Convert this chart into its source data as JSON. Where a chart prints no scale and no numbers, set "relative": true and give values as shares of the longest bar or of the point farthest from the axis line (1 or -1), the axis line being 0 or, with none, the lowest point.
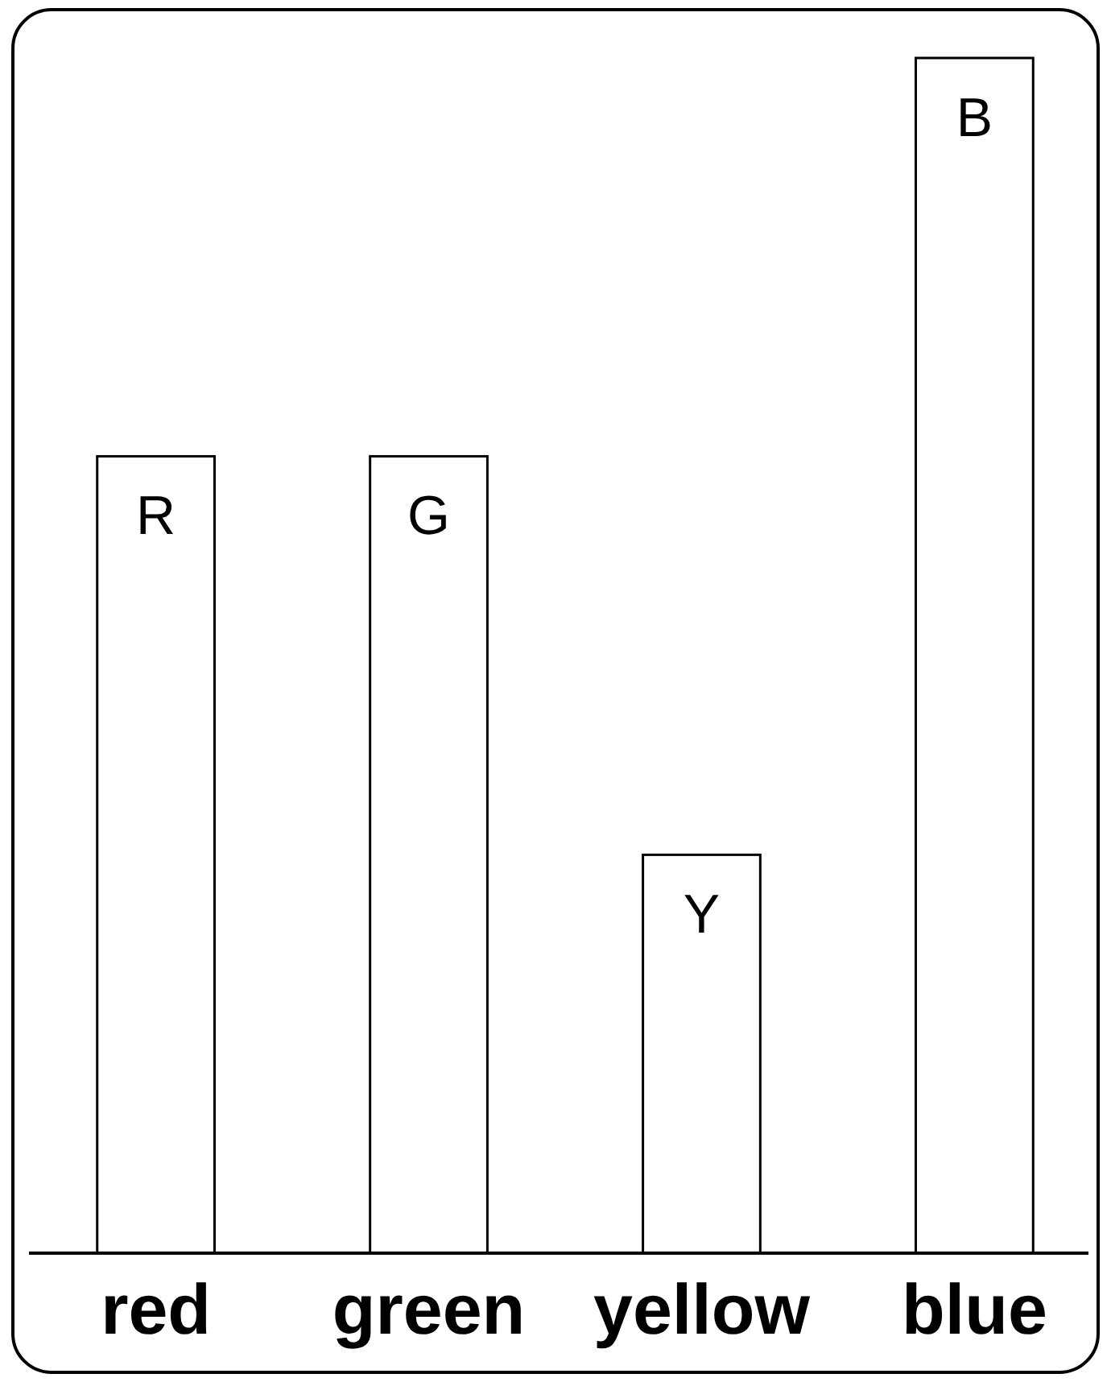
{
  "chart_data": {
    "type": "bar",
    "relative": true,
    "categories": [
      "red",
      "green",
      "yellow",
      "blue"
    ],
    "values": [
      0.6667,
      0.6667,
      0.3333,
      1
    ],
    "color": "#ffffff",
    "annotations": [
      "R",
      "G",
      "Y",
      "B"
    ]
  }
}
